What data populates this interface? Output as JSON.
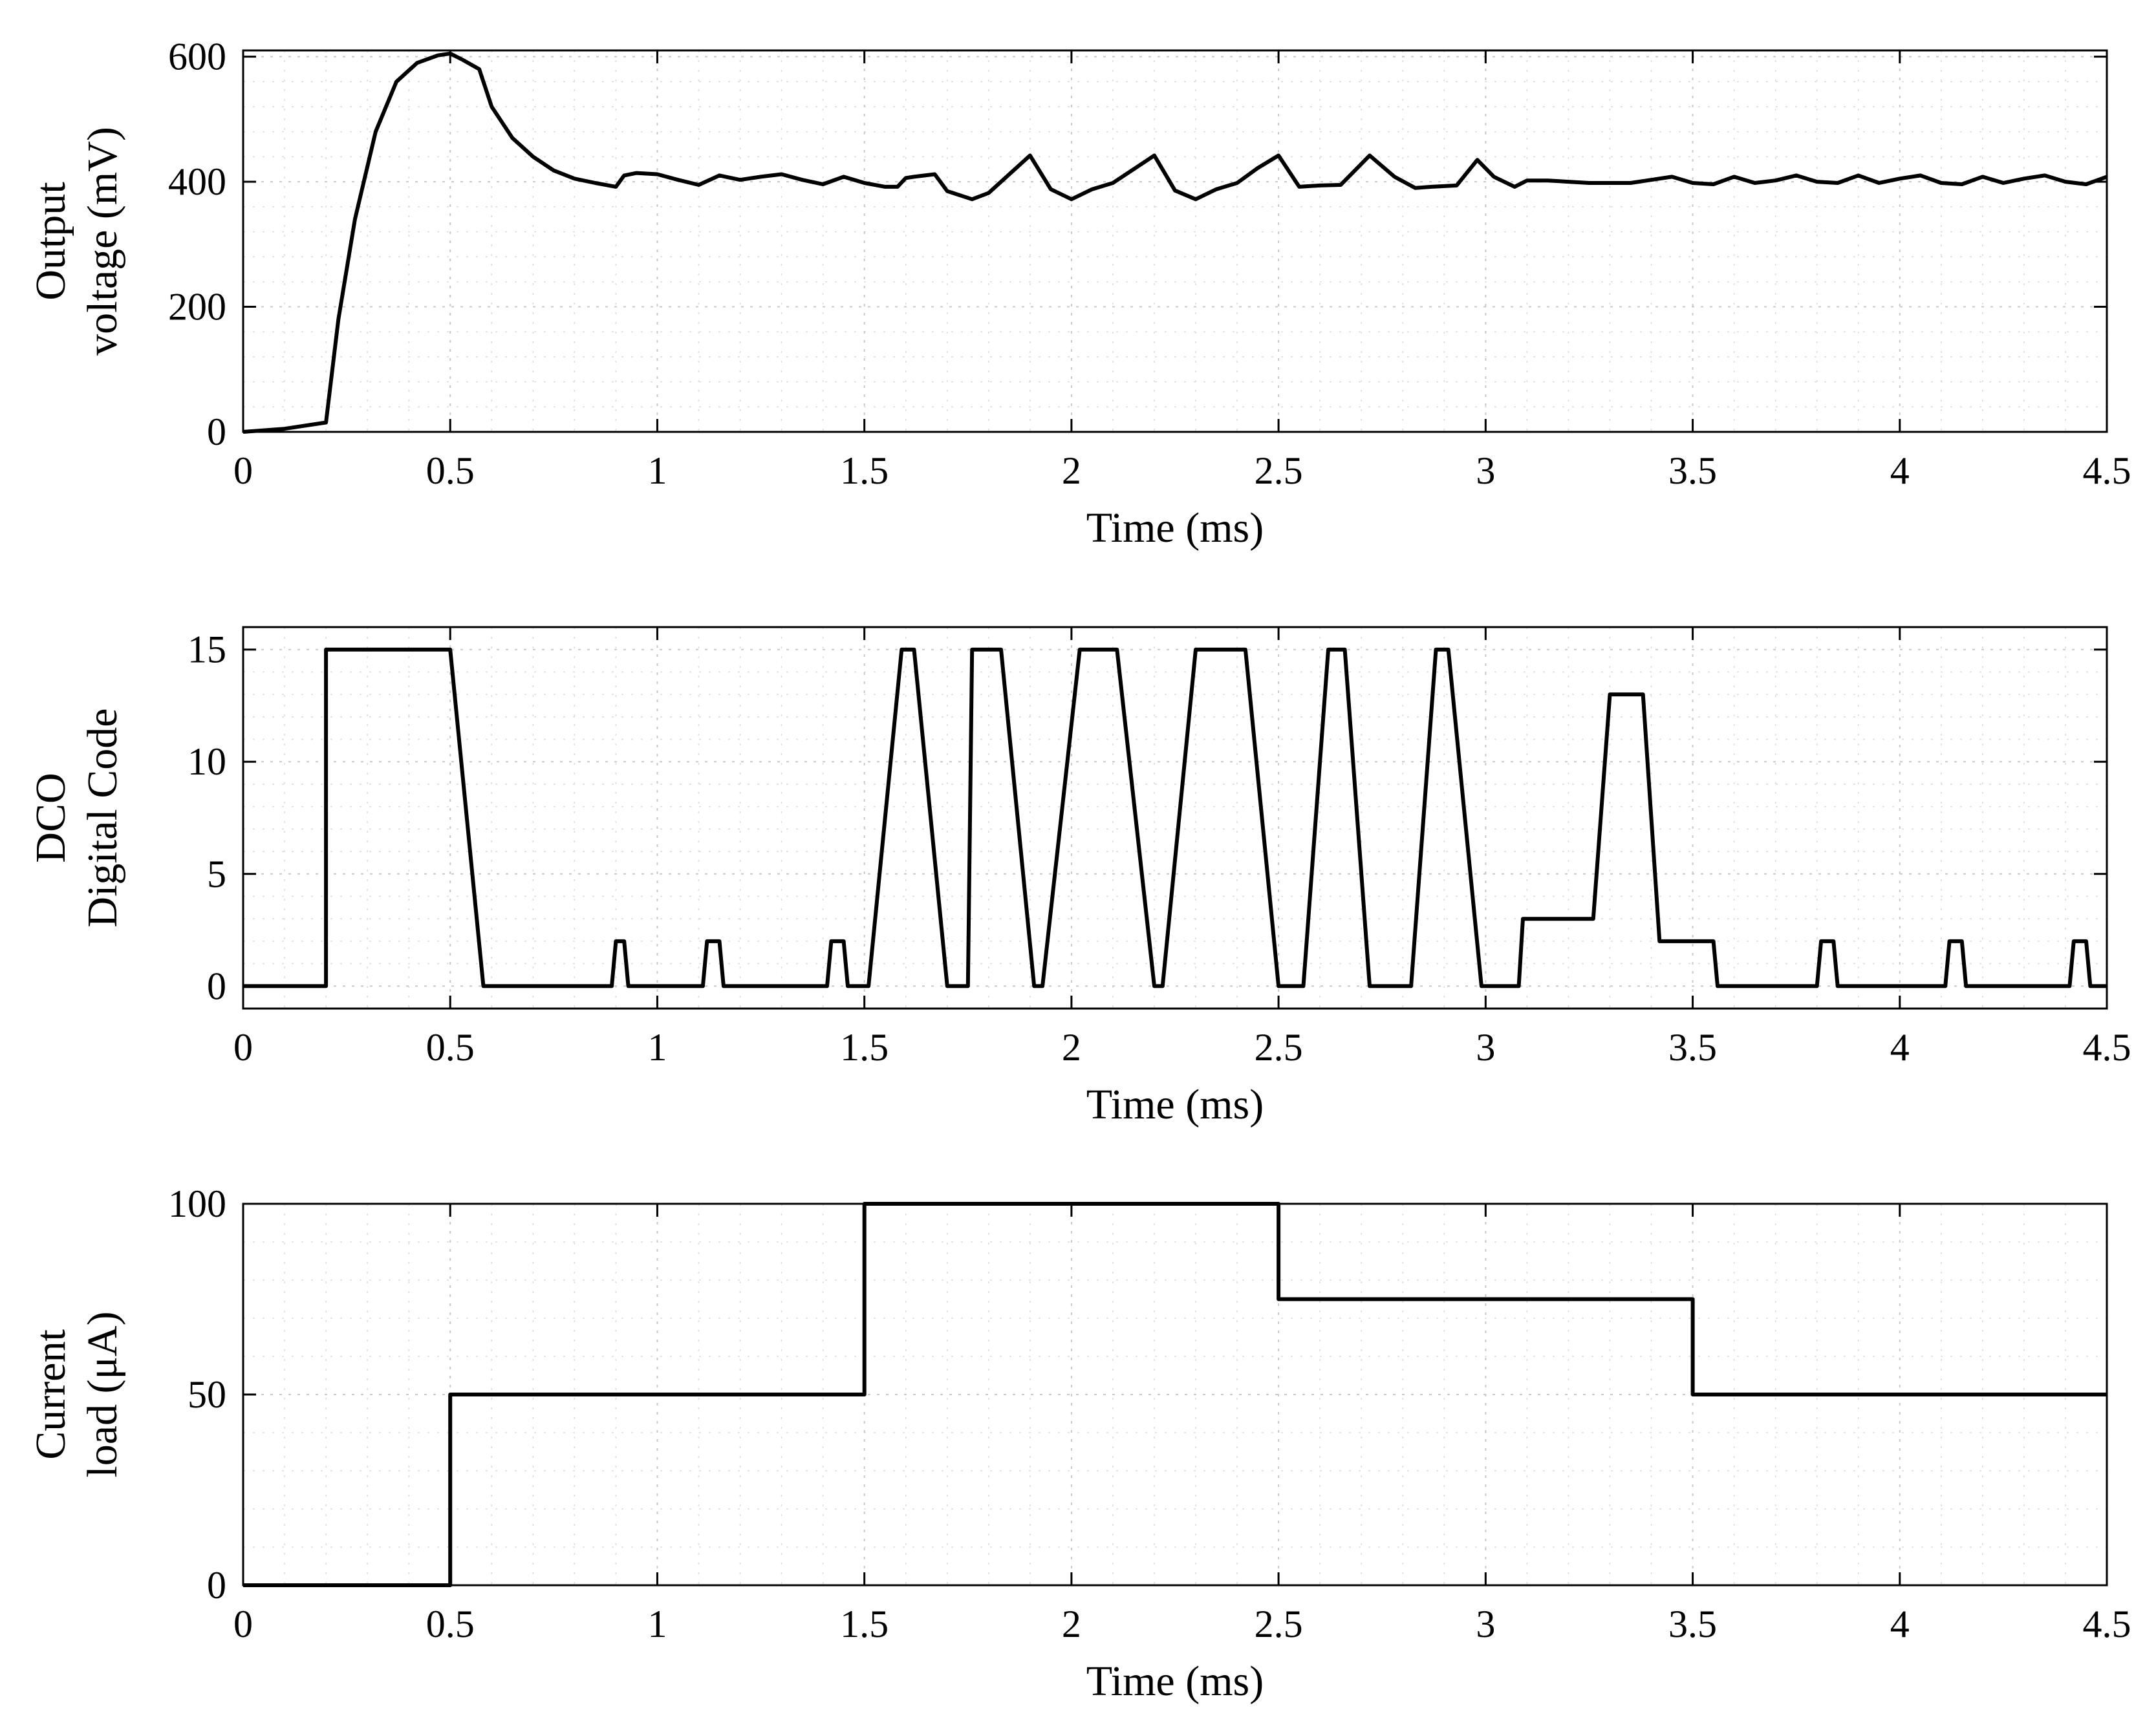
{
  "chart_data": [
    {
      "type": "line",
      "title": "",
      "xlabel": "Time (ms)",
      "ylabel": [
        "Output",
        "voltage (mV)"
      ],
      "xlim": [
        0,
        4.5
      ],
      "ylim": [
        0,
        610
      ],
      "xticks": [
        0,
        0.5,
        1,
        1.5,
        2,
        2.5,
        3,
        3.5,
        4,
        4.5
      ],
      "xtick_labels": [
        "0",
        "0.5",
        "1",
        "1.5",
        "2",
        "2.5",
        "3",
        "3.5",
        "4",
        "4.5"
      ],
      "yticks": [
        0,
        200,
        400,
        600
      ],
      "ytick_labels": [
        "0",
        "200",
        "400",
        "600"
      ],
      "grid": true,
      "series": [
        {
          "x": [
            0,
            0.1,
            0.2,
            0.23,
            0.27,
            0.32,
            0.37,
            0.42,
            0.47,
            0.5,
            0.53,
            0.57,
            0.6,
            0.65,
            0.7,
            0.75,
            0.8,
            0.85,
            0.9,
            0.92,
            0.95,
            1.0,
            1.05,
            1.1,
            1.15,
            1.2,
            1.25,
            1.3,
            1.35,
            1.4,
            1.45,
            1.5,
            1.55,
            1.58,
            1.6,
            1.62,
            1.67,
            1.7,
            1.76,
            1.8,
            1.85,
            1.9,
            1.95,
            2.0,
            2.05,
            2.1,
            2.15,
            2.2,
            2.25,
            2.3,
            2.35,
            2.4,
            2.45,
            2.5,
            2.55,
            2.6,
            2.65,
            2.72,
            2.78,
            2.83,
            2.87,
            2.93,
            2.98,
            3.02,
            3.07,
            3.1,
            3.15,
            3.2,
            3.25,
            3.3,
            3.35,
            3.4,
            3.45,
            3.5,
            3.55,
            3.6,
            3.65,
            3.7,
            3.75,
            3.8,
            3.85,
            3.9,
            3.95,
            4.0,
            4.05,
            4.1,
            4.15,
            4.2,
            4.25,
            4.3,
            4.35,
            4.4,
            4.45,
            4.5
          ],
          "y": [
            0,
            5,
            15,
            180,
            340,
            480,
            560,
            590,
            602,
            605,
            595,
            580,
            520,
            470,
            440,
            418,
            405,
            398,
            392,
            410,
            414,
            412,
            403,
            395,
            410,
            403,
            408,
            412,
            403,
            396,
            408,
            398,
            392,
            392,
            406,
            408,
            412,
            385,
            372,
            382,
            412,
            442,
            388,
            372,
            388,
            398,
            420,
            442,
            386,
            372,
            388,
            398,
            422,
            442,
            392,
            394,
            395,
            442,
            408,
            390,
            392,
            394,
            435,
            408,
            392,
            402,
            402,
            400,
            398,
            398,
            398,
            403,
            408,
            398,
            396,
            408,
            398,
            402,
            410,
            400,
            398,
            410,
            398,
            405,
            410,
            398,
            396,
            408,
            398,
            405,
            410,
            400,
            396,
            408
          ]
        }
      ]
    },
    {
      "type": "line",
      "title": "",
      "xlabel": "Time (ms)",
      "ylabel": [
        "DCO",
        "Digital Code"
      ],
      "xlim": [
        0,
        4.5
      ],
      "ylim": [
        -1,
        16
      ],
      "xticks": [
        0,
        0.5,
        1,
        1.5,
        2,
        2.5,
        3,
        3.5,
        4,
        4.5
      ],
      "xtick_labels": [
        "0",
        "0.5",
        "1",
        "1.5",
        "2",
        "2.5",
        "3",
        "3.5",
        "4",
        "4.5"
      ],
      "yticks": [
        0,
        5,
        10,
        15
      ],
      "ytick_labels": [
        "0",
        "5",
        "10",
        "15"
      ],
      "grid": true,
      "series": [
        {
          "x": [
            0,
            0.2,
            0.2,
            0.5,
            0.58,
            0.89,
            0.9,
            0.92,
            0.93,
            1.11,
            1.12,
            1.15,
            1.16,
            1.41,
            1.42,
            1.45,
            1.46,
            1.51,
            1.59,
            1.62,
            1.7,
            1.75,
            1.76,
            1.83,
            1.91,
            1.93,
            2.02,
            2.11,
            2.2,
            2.22,
            2.3,
            2.42,
            2.5,
            2.56,
            2.62,
            2.66,
            2.72,
            2.82,
            2.88,
            2.91,
            2.99,
            3.08,
            3.09,
            3.26,
            3.3,
            3.38,
            3.42,
            3.55,
            3.56,
            3.8,
            3.81,
            3.84,
            3.85,
            4.11,
            4.12,
            4.15,
            4.16,
            4.41,
            4.42,
            4.45,
            4.46,
            4.5
          ],
          "y": [
            0,
            0,
            15,
            15,
            0,
            0,
            2,
            2,
            0,
            0,
            2,
            2,
            0,
            0,
            2,
            2,
            0,
            0,
            15,
            15,
            0,
            0,
            15,
            15,
            0,
            0,
            15,
            15,
            0,
            0,
            15,
            15,
            0,
            0,
            15,
            15,
            0,
            0,
            15,
            15,
            0,
            0,
            3,
            3,
            13,
            13,
            2,
            2,
            0,
            0,
            2,
            2,
            0,
            0,
            2,
            2,
            0,
            0,
            2,
            2,
            0,
            0
          ]
        }
      ]
    },
    {
      "type": "line",
      "title": "",
      "xlabel": "Time (ms)",
      "ylabel": [
        "Current",
        "load (μA)"
      ],
      "xlim": [
        0,
        4.5
      ],
      "ylim": [
        0,
        100
      ],
      "xticks": [
        0,
        0.5,
        1,
        1.5,
        2,
        2.5,
        3,
        3.5,
        4,
        4.5
      ],
      "xtick_labels": [
        "0",
        "0.5",
        "1",
        "1.5",
        "2",
        "2.5",
        "3",
        "3.5",
        "4",
        "4.5"
      ],
      "yticks": [
        0,
        50,
        100
      ],
      "ytick_labels": [
        "0",
        "50",
        "100"
      ],
      "grid": true,
      "series": [
        {
          "x": [
            0,
            0.5,
            0.5,
            1.5,
            1.5,
            2.5,
            2.5,
            3.5,
            3.5,
            4.5
          ],
          "y": [
            0,
            0,
            50,
            50,
            100,
            100,
            75,
            75,
            50,
            50
          ]
        }
      ]
    }
  ]
}
